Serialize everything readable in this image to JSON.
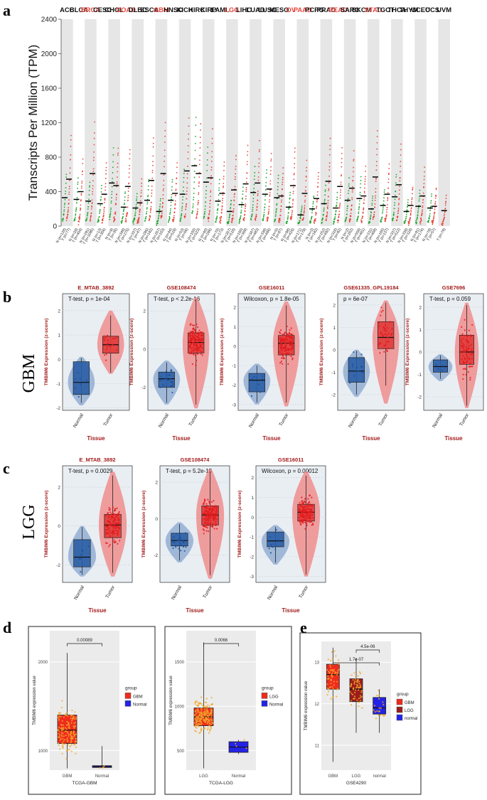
{
  "panels": {
    "a": "a",
    "b": "b",
    "c": "c",
    "d": "d",
    "e": "e"
  },
  "row_labels": {
    "b": "GBM",
    "c": "LGG"
  },
  "colors": {
    "tumor": "#e8473f",
    "normal": "#1fa52e",
    "highlight": "#e8473f",
    "violin_red": "#f08080",
    "violin_blue": "#87a5cf",
    "box_red": "#e03b3b",
    "box_blue": "#2a5ea6",
    "panel_bg": "#e9eef3",
    "title_red": "#a31b1b",
    "gbm_red": "#ef2a1e",
    "normal_blue": "#2323e6",
    "lgg_dark": "#9b1c1c",
    "points_orange": "#f2a62b"
  },
  "chart_data": [
    {
      "id": "a",
      "type": "scatter",
      "title": "",
      "ylabel": "Transcripts Per Million (TPM)",
      "ylim": [
        0,
        2400
      ],
      "yticks": [
        0,
        400,
        800,
        1200,
        1600,
        2000,
        2400
      ],
      "cancers": [
        {
          "name": "ACC",
          "hl": false,
          "t": 545,
          "n": 330,
          "tlab": "T (n=77)",
          "nlab": "N (n=128)"
        },
        {
          "name": "BLCA",
          "hl": false,
          "t": 400,
          "n": 310,
          "tlab": "T (n=404)",
          "nlab": "N (n=28)"
        },
        {
          "name": "BRCA",
          "hl": true,
          "t": 610,
          "n": 290,
          "tlab": "T (n=1085)",
          "nlab": "N (n=291)"
        },
        {
          "name": "CESC",
          "hl": false,
          "t": 370,
          "n": 260,
          "tlab": "T (n=306)",
          "nlab": "N (n=13)"
        },
        {
          "name": "CHOL",
          "hl": false,
          "t": 470,
          "n": 500,
          "tlab": "T (n=36)",
          "nlab": "N (n=9)"
        },
        {
          "name": "COAD",
          "hl": true,
          "t": 460,
          "n": 220,
          "tlab": "T (n=275)",
          "nlab": "N (n=349)"
        },
        {
          "name": "DLBC",
          "hl": false,
          "t": 270,
          "n": 210,
          "tlab": "T (n=47)",
          "nlab": "N (n=337)"
        },
        {
          "name": "ESCA",
          "hl": false,
          "t": 530,
          "n": 300,
          "tlab": "T (n=182)",
          "nlab": "N (n=286)"
        },
        {
          "name": "GBM",
          "hl": true,
          "t": 610,
          "n": 170,
          "tlab": "T (n=163)",
          "nlab": "N (n=207)"
        },
        {
          "name": "HNSC",
          "hl": false,
          "t": 380,
          "n": 300,
          "tlab": "T (n=519)",
          "nlab": "N (n=44)"
        },
        {
          "name": "KICH",
          "hl": false,
          "t": 640,
          "n": 370,
          "tlab": "T (n=66)",
          "nlab": "N (n=53)"
        },
        {
          "name": "KIRC",
          "hl": false,
          "t": 610,
          "n": 700,
          "tlab": "T (n=523)",
          "nlab": "N (n=100)"
        },
        {
          "name": "KIRP",
          "hl": false,
          "t": 560,
          "n": 510,
          "tlab": "T (n=286)",
          "nlab": "N (n=60)"
        },
        {
          "name": "LAML",
          "hl": false,
          "t": 380,
          "n": 290,
          "tlab": "T (n=173)",
          "nlab": "N (n=70)"
        },
        {
          "name": "LGG",
          "hl": true,
          "t": 420,
          "n": 170,
          "tlab": "T (n=518)",
          "nlab": "N (n=207)"
        },
        {
          "name": "LIHC",
          "hl": false,
          "t": 490,
          "n": 250,
          "tlab": "T (n=369)",
          "nlab": "N (n=160)"
        },
        {
          "name": "LUAD",
          "hl": false,
          "t": 500,
          "n": 390,
          "tlab": "T (n=483)",
          "nlab": "N (n=347)"
        },
        {
          "name": "LUSC",
          "hl": false,
          "t": 430,
          "n": 370,
          "tlab": "T (n=486)",
          "nlab": "N (n=338)"
        },
        {
          "name": "MESO",
          "hl": false,
          "t": 350,
          "n": 330,
          "tlab": "T (n=87)",
          "nlab": "N (n=0)"
        },
        {
          "name": "OV",
          "hl": true,
          "t": 470,
          "n": 220,
          "tlab": "T (n=426)",
          "nlab": "N (n=88)"
        },
        {
          "name": "PAAD",
          "hl": true,
          "t": 380,
          "n": 130,
          "tlab": "T (n=179)",
          "nlab": "N (n=171)"
        },
        {
          "name": "PCPG",
          "hl": false,
          "t": 320,
          "n": 200,
          "tlab": "T (n=182)",
          "nlab": "N (n=3)"
        },
        {
          "name": "PRAD",
          "hl": false,
          "t": 520,
          "n": 260,
          "tlab": "T (n=492)",
          "nlab": "N (n=152)"
        },
        {
          "name": "READ",
          "hl": true,
          "t": 460,
          "n": 210,
          "tlab": "T (n=92)",
          "nlab": "N (n=318)"
        },
        {
          "name": "SARC",
          "hl": false,
          "t": 440,
          "n": 300,
          "tlab": "T (n=262)",
          "nlab": "N (n=2)"
        },
        {
          "name": "SKCM",
          "hl": false,
          "t": 350,
          "n": 320,
          "tlab": "T (n=461)",
          "nlab": "N (n=558)"
        },
        {
          "name": "STAD",
          "hl": true,
          "t": 570,
          "n": 200,
          "tlab": "T (n=408)",
          "nlab": "N (n=211)"
        },
        {
          "name": "TGCT",
          "hl": false,
          "t": 370,
          "n": 240,
          "tlab": "T (n=137)",
          "nlab": "N (n=165)"
        },
        {
          "name": "THCA",
          "hl": false,
          "t": 480,
          "n": 340,
          "tlab": "T (n=512)",
          "nlab": "N (n=337)"
        },
        {
          "name": "THYM",
          "hl": false,
          "t": 240,
          "n": 170,
          "tlab": "T (n=118)",
          "nlab": "N (n=339)"
        },
        {
          "name": "UCEC",
          "hl": false,
          "t": 350,
          "n": 230,
          "tlab": "T (n=174)",
          "nlab": "N (n=91)"
        },
        {
          "name": "UCS",
          "hl": false,
          "t": 230,
          "n": 210,
          "tlab": "T (n=57)",
          "nlab": "N (n=78)"
        },
        {
          "name": "UVM",
          "hl": false,
          "t": 180,
          "n": null,
          "tlab": "T (n=79)",
          "nlab": ""
        }
      ]
    },
    {
      "id": "b1",
      "type": "box",
      "title": "E_MTAB_3892",
      "stat": "T-test, p = 1e-04",
      "xlabel": "Tissue",
      "ylabel": "TMBIM6 Expression (z-score)",
      "categories": [
        "Normal",
        "Tumor"
      ],
      "ylim": [
        -2.1,
        2.7
      ],
      "yticks": [
        -2,
        -1,
        0,
        1,
        2
      ],
      "groups": [
        {
          "q1": -1.45,
          "med": -0.95,
          "q3": -0.1,
          "lo": -1.8,
          "hi": 0.05,
          "vlo": -1.9,
          "vhi": 0.1,
          "n": 7
        },
        {
          "q1": 0.25,
          "med": 0.6,
          "q3": 0.95,
          "lo": -0.55,
          "hi": 1.8,
          "vlo": -0.6,
          "vhi": 2.0,
          "n": 20
        }
      ]
    },
    {
      "id": "b2",
      "type": "box",
      "title": "GSE108474",
      "stat": "T-test, p < 2.2e-16",
      "xlabel": "Tissue",
      "ylabel": "TMBIM6 Expression (z-score)",
      "categories": [
        "Normal",
        "Tumor"
      ],
      "ylim": [
        -3.2,
        2.9
      ],
      "yticks": [
        -2,
        0,
        2
      ],
      "groups": [
        {
          "q1": -2.0,
          "med": -1.55,
          "q3": -1.2,
          "lo": -2.8,
          "hi": -0.7,
          "vlo": -2.9,
          "vhi": -0.6,
          "n": 28
        },
        {
          "q1": -0.2,
          "med": 0.35,
          "q3": 0.85,
          "lo": -2.9,
          "hi": 2.6,
          "vlo": -3.1,
          "vhi": 2.7,
          "n": 220
        }
      ]
    },
    {
      "id": "b3",
      "type": "box",
      "title": "GSE16011",
      "stat": "Wilcoxon, p = 1.8e-05",
      "xlabel": "Tissue",
      "ylabel": "TMBIM6 Expression (z-score)",
      "categories": [
        "Normal",
        "Tumor"
      ],
      "ylim": [
        -3.3,
        2.7
      ],
      "yticks": [
        -3,
        -2,
        -1,
        0,
        1,
        2
      ],
      "groups": [
        {
          "q1": -2.35,
          "med": -1.75,
          "q3": -1.4,
          "lo": -2.9,
          "hi": -1.0,
          "vlo": -3.0,
          "vhi": -0.9,
          "n": 8
        },
        {
          "q1": -0.45,
          "med": 0.15,
          "q3": 0.55,
          "lo": -2.9,
          "hi": 2.1,
          "vlo": -3.1,
          "vhi": 2.3,
          "n": 150
        }
      ]
    },
    {
      "id": "b4",
      "type": "box",
      "title": "GSE61335_GPL19184",
      "stat": "p = 6e-07",
      "xlabel": "Tissue",
      "ylabel": "TMBIM6 Expression (z-score)",
      "categories": [
        "Normal",
        "Tumor"
      ],
      "ylim": [
        -2.7,
        2.5
      ],
      "yticks": [
        -2,
        -1,
        0,
        1,
        2
      ],
      "groups": [
        {
          "q1": -1.45,
          "med": -0.95,
          "q3": -0.35,
          "lo": -2.0,
          "hi": -0.05,
          "vlo": -2.1,
          "vhi": 0.0,
          "n": 12
        },
        {
          "q1": 0.05,
          "med": 0.55,
          "q3": 1.25,
          "lo": -1.6,
          "hi": 2.1,
          "vlo": -2.4,
          "vhi": 2.2,
          "n": 40
        }
      ]
    },
    {
      "id": "b5",
      "type": "box",
      "title": "GSE7696",
      "stat": "T-test, p = 0.059",
      "xlabel": "Tissue",
      "ylabel": "TMBIM6 Expression (z-score)",
      "categories": [
        "Normal",
        "Tumor"
      ],
      "ylim": [
        -2.6,
        2.6
      ],
      "yticks": [
        -2,
        -1,
        0,
        1,
        2
      ],
      "groups": [
        {
          "q1": -0.9,
          "med": -0.65,
          "q3": -0.35,
          "lo": -1.2,
          "hi": -0.15,
          "vlo": -1.3,
          "vhi": -0.1,
          "n": 4
        },
        {
          "q1": -0.55,
          "med": 0.0,
          "q3": 0.75,
          "lo": -2.4,
          "hi": 2.1,
          "vlo": -2.5,
          "vhi": 2.2,
          "n": 80
        }
      ]
    },
    {
      "id": "c1",
      "type": "box",
      "title": "E_MTAB_3892",
      "stat": "T-test, p = 0.0029",
      "xlabel": "Tissue",
      "ylabel": "TMBIM6 Expression (z-score)",
      "categories": [
        "Normal",
        "Tumor"
      ],
      "ylim": [
        -2.9,
        3.1
      ],
      "yticks": [
        -2,
        0,
        2
      ],
      "groups": [
        {
          "q1": -2.1,
          "med": -1.6,
          "q3": -0.7,
          "lo": -2.5,
          "hi": -0.05,
          "vlo": -2.6,
          "vhi": 0.0,
          "n": 7
        },
        {
          "q1": -0.6,
          "med": 0.05,
          "q3": 0.6,
          "lo": -2.4,
          "hi": 2.6,
          "vlo": -2.6,
          "vhi": 2.8,
          "n": 130
        }
      ]
    },
    {
      "id": "c2",
      "type": "box",
      "title": "GSE108474",
      "stat": "T-test, p = 5.2e-15",
      "xlabel": "Tissue",
      "ylabel": "TMBIM6 Expression (z-score)",
      "categories": [
        "Normal",
        "Tumor"
      ],
      "ylim": [
        -3.5,
        2.9
      ],
      "yticks": [
        -2,
        0,
        2
      ],
      "groups": [
        {
          "q1": -1.5,
          "med": -1.2,
          "q3": -0.8,
          "lo": -2.3,
          "hi": -0.3,
          "vlo": -2.4,
          "vhi": -0.2,
          "n": 28
        },
        {
          "q1": -0.35,
          "med": 0.2,
          "q3": 0.7,
          "lo": -3.1,
          "hi": 2.6,
          "vlo": -3.3,
          "vhi": 2.7,
          "n": 200
        }
      ]
    },
    {
      "id": "c3",
      "type": "box",
      "title": "GSE16011",
      "stat": "Wilcoxon, p = 0.00012",
      "xlabel": "Tissue",
      "ylabel": "TMBIM6 Expression (z-score)",
      "categories": [
        "Normal",
        "Tumor"
      ],
      "ylim": [
        -3.3,
        2.6
      ],
      "yticks": [
        -3,
        -2,
        -1,
        0,
        1,
        2
      ],
      "groups": [
        {
          "q1": -1.5,
          "med": -1.2,
          "q3": -0.75,
          "lo": -2.3,
          "hi": -0.5,
          "vlo": -2.4,
          "vhi": -0.4,
          "n": 8
        },
        {
          "q1": -0.2,
          "med": 0.25,
          "q3": 0.65,
          "lo": -2.9,
          "hi": 2.1,
          "vlo": -3.0,
          "vhi": 2.3,
          "n": 150
        }
      ]
    },
    {
      "id": "d1",
      "type": "box",
      "stat": "0.00089",
      "xlabel": "TCGA-GBM",
      "ylabel": "TMBIM6 expression value",
      "categories": [
        "GBM",
        "Normal"
      ],
      "legend_title": "group",
      "legend": [
        "GBM",
        "Normal"
      ],
      "ylim": [
        780,
        2350
      ],
      "yticks": [
        1000,
        2000
      ],
      "groups": [
        {
          "q1": 1080,
          "med": 1230,
          "q3": 1400,
          "lo": 850,
          "hi": 1850,
          "vlo": 800,
          "vhi": 2100,
          "n": 150,
          "fill": "#ef2a1e"
        },
        {
          "q1": 810,
          "med": 820,
          "q3": 830,
          "lo": 810,
          "hi": 830,
          "vlo": 805,
          "vhi": 1050,
          "n": 4,
          "fill": "#2323e6"
        }
      ]
    },
    {
      "id": "d2",
      "type": "box",
      "stat": "0.0066",
      "xlabel": "TCGA-LGG",
      "ylabel": "TMBIM6 expression value",
      "categories": [
        "LGG",
        "Normal"
      ],
      "legend_title": "group",
      "legend": [
        "LGG",
        "Normal"
      ],
      "ylim": [
        280,
        1850
      ],
      "yticks": [
        500,
        1000,
        1500
      ],
      "groups": [
        {
          "q1": 780,
          "med": 880,
          "q3": 980,
          "lo": 480,
          "hi": 1360,
          "vlo": 300,
          "vhi": 1720,
          "n": 220,
          "fill": "#ef2a1e"
        },
        {
          "q1": 480,
          "med": 540,
          "q3": 600,
          "lo": 470,
          "hi": 610,
          "vlo": 460,
          "vhi": 620,
          "n": 4,
          "fill": "#2323e6"
        }
      ]
    },
    {
      "id": "e",
      "type": "box",
      "stat_top": "4.5e-06",
      "stat_mid": "1.7e-07",
      "xlabel": "GSE4290",
      "ylabel": "TMBIM6 expression value",
      "categories": [
        "GBM",
        "LGG",
        "normal"
      ],
      "legend_title": "group",
      "legend": [
        "GBM",
        "LGG",
        "normal"
      ],
      "ylim": [
        10.4,
        13.5
      ],
      "yticks": [
        11,
        12,
        13
      ],
      "groups": [
        {
          "q1": 12.35,
          "med": 12.7,
          "q3": 12.95,
          "lo": 11.5,
          "hi": 13.2,
          "vlo": 10.6,
          "vhi": 13.35,
          "n": 60,
          "fill": "#ef2a1e"
        },
        {
          "q1": 12.05,
          "med": 12.35,
          "q3": 12.6,
          "lo": 11.55,
          "hi": 13.0,
          "vlo": 11.3,
          "vhi": 13.1,
          "n": 60,
          "fill": "#9b1c1c"
        },
        {
          "q1": 11.75,
          "med": 11.9,
          "q3": 12.15,
          "lo": 11.45,
          "hi": 12.3,
          "vlo": 11.3,
          "vhi": 12.35,
          "n": 20,
          "fill": "#2323e6"
        }
      ]
    }
  ]
}
